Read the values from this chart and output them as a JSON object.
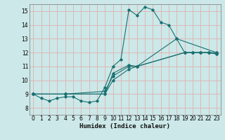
{
  "title": "",
  "xlabel": "Humidex (Indice chaleur)",
  "bg_color": "#cce8e8",
  "grid_color": "#e0b0b0",
  "line_color": "#1a7070",
  "xlim": [
    -0.5,
    23.5
  ],
  "ylim": [
    7.5,
    15.5
  ],
  "xticks": [
    0,
    1,
    2,
    3,
    4,
    5,
    6,
    7,
    8,
    9,
    10,
    11,
    12,
    13,
    14,
    15,
    16,
    17,
    18,
    19,
    20,
    21,
    22,
    23
  ],
  "yticks": [
    8,
    9,
    10,
    11,
    12,
    13,
    14,
    15
  ],
  "series": [
    {
      "x": [
        0,
        1,
        2,
        3,
        4,
        5,
        6,
        7,
        8,
        9,
        10,
        11,
        12,
        13,
        14,
        15,
        16,
        17,
        18,
        19,
        20,
        21,
        22,
        23
      ],
      "y": [
        9.0,
        8.7,
        8.5,
        8.7,
        8.8,
        8.8,
        8.5,
        8.4,
        8.5,
        9.5,
        11.0,
        11.5,
        15.1,
        14.7,
        15.3,
        15.1,
        14.2,
        14.0,
        13.0,
        12.0,
        12.0,
        12.0,
        12.0,
        11.9
      ]
    },
    {
      "x": [
        0,
        4,
        9,
        10,
        12,
        13,
        19,
        20,
        21,
        22,
        23
      ],
      "y": [
        9.0,
        9.0,
        9.0,
        10.5,
        11.1,
        11.0,
        12.0,
        12.0,
        12.0,
        12.0,
        12.0
      ]
    },
    {
      "x": [
        0,
        4,
        9,
        10,
        12,
        13,
        19,
        20,
        21,
        22,
        23
      ],
      "y": [
        9.0,
        9.0,
        9.0,
        10.0,
        10.8,
        11.0,
        12.0,
        12.0,
        12.0,
        12.0,
        11.9
      ]
    },
    {
      "x": [
        0,
        4,
        9,
        10,
        12,
        13,
        18,
        23
      ],
      "y": [
        9.0,
        9.0,
        9.2,
        10.3,
        11.0,
        11.0,
        13.0,
        12.0
      ]
    }
  ]
}
